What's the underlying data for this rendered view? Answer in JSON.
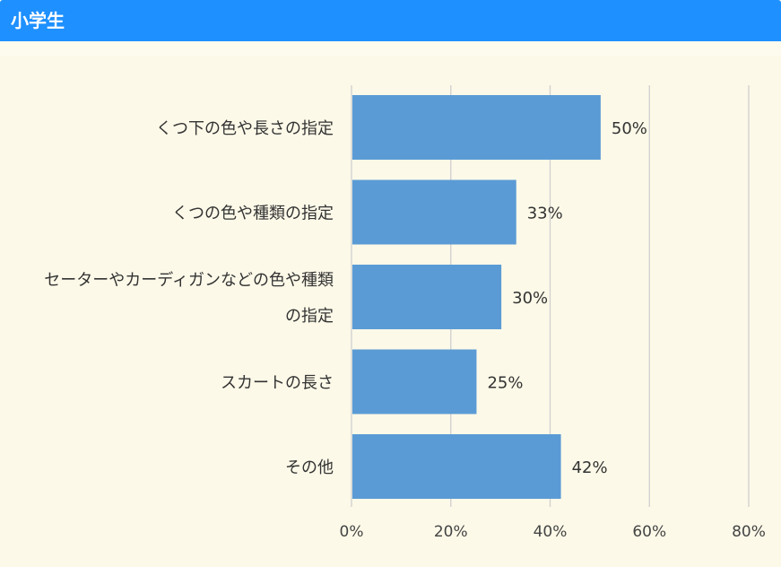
{
  "header": {
    "title": "小学生"
  },
  "colors": {
    "header_bg": "#1e90ff",
    "bar": "#5b9bd5",
    "grid": "#cfcfcf",
    "background": "#fcf9e8"
  },
  "chart_data": {
    "type": "bar",
    "orientation": "horizontal",
    "categories": [
      [
        "くつ下の色や長さの指定"
      ],
      [
        "くつの色や種類の指定"
      ],
      [
        "セーターやカーディガンなどの色や種類",
        "の指定"
      ],
      [
        "スカートの長さ"
      ],
      [
        "その他"
      ]
    ],
    "values": [
      50,
      33,
      30,
      25,
      42
    ],
    "value_labels": [
      "50%",
      "33%",
      "30%",
      "25%",
      "42%"
    ],
    "xlim": [
      0,
      80
    ],
    "xticks": [
      0,
      20,
      40,
      60,
      80
    ],
    "xtick_labels": [
      "0%",
      "20%",
      "40%",
      "60%",
      "80%"
    ],
    "grid": true,
    "legend": "none"
  }
}
